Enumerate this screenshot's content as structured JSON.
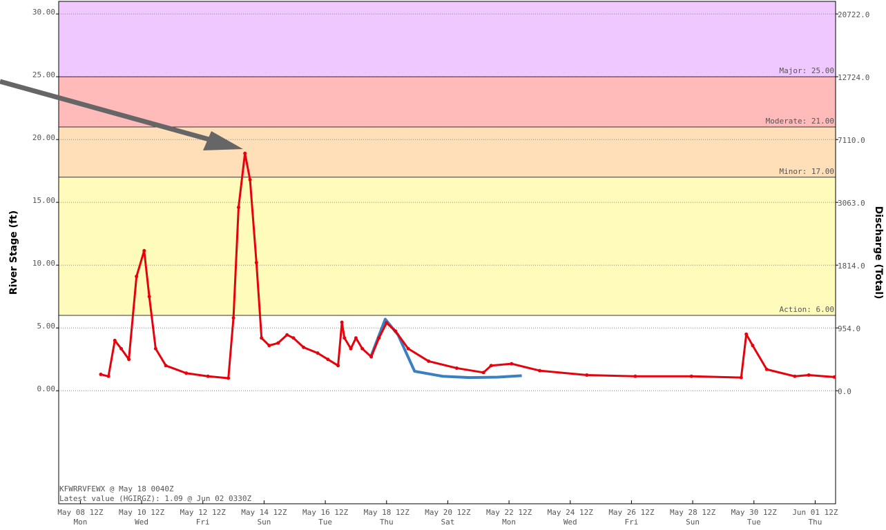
{
  "chart_data": {
    "type": "line",
    "ylabel": "River Stage (ft)",
    "y2label": "Discharge (Total)",
    "xlim": [
      "May 07 19Z",
      "Jun 02 04Z"
    ],
    "ylim": [
      -9,
      31
    ],
    "yticks": [
      {
        "value": 0,
        "label": "0.00"
      },
      {
        "value": 5,
        "label": "5.00"
      },
      {
        "value": 10,
        "label": "10.00"
      },
      {
        "value": 15,
        "label": "15.00"
      },
      {
        "value": 20,
        "label": "20.00"
      },
      {
        "value": 25,
        "label": "25.00"
      },
      {
        "value": 30,
        "label": "30.00"
      }
    ],
    "y2ticks": [
      {
        "value": 0,
        "label": "0.0",
        "stage": 0
      },
      {
        "value": 954,
        "label": "954.0",
        "stage": 5
      },
      {
        "value": 1814,
        "label": "1814.0",
        "stage": 10
      },
      {
        "value": 3063,
        "label": "3063.0",
        "stage": 15
      },
      {
        "value": 7110,
        "label": "7110.0",
        "stage": 20
      },
      {
        "value": 12724,
        "label": "12724.0",
        "stage": 25
      },
      {
        "value": 20722,
        "label": "20722.0",
        "stage": 30
      }
    ],
    "xticks": [
      "May 08 12Z",
      "May 10 12Z",
      "May 12 12Z",
      "May 14 12Z",
      "May 16 12Z",
      "May 18 12Z",
      "May 20 12Z",
      "May 22 12Z",
      "May 24 12Z",
      "May 26 12Z",
      "May 28 12Z",
      "May 30 12Z",
      "Jun 01 12Z"
    ],
    "xtick_weekdays": [
      "Mon",
      "Wed",
      "Fri",
      "Sun",
      "Tue",
      "Thu",
      "Sat",
      "Mon",
      "Wed",
      "Fri",
      "Sun",
      "Tue",
      "Thu"
    ],
    "flood_levels": [
      {
        "value": 6,
        "label": "Action: 6.00",
        "color": "#fffcbb"
      },
      {
        "value": 17,
        "label": "Minor: 17.00",
        "color": "#ffdfb8"
      },
      {
        "value": 21,
        "label": "Moderate: 21.00",
        "color": "#ffbaba"
      },
      {
        "value": 25,
        "label": "Major: 25.00",
        "color": "#efc8ff"
      }
    ],
    "grid": true,
    "series": [
      {
        "label": "Latest value (HGIRGZ): 1.09 @ Jun 02 0330Z",
        "color": "#e8000b",
        "markers": true,
        "x": [
          "May 09 04Z",
          "May 09 10Z",
          "May 09 15Z",
          "May 09 20Z",
          "May 10 02Z",
          "May 10 08Z",
          "May 10 14Z",
          "May 10 18Z",
          "May 10 23Z",
          "May 11 07Z",
          "May 11 23Z",
          "May 12 16Z",
          "May 13 08Z",
          "May 13 12Z",
          "May 13 16Z",
          "May 13 21Z",
          "May 14 01Z",
          "May 14 06Z",
          "May 14 10Z",
          "May 14 16Z",
          "May 14 23Z",
          "May 15 06Z",
          "May 15 11Z",
          "May 15 19Z",
          "May 16 06Z",
          "May 16 14Z",
          "May 16 22Z",
          "May 17 01Z",
          "May 17 03Z",
          "May 17 08Z",
          "May 17 12Z",
          "May 17 17Z",
          "May 18 00Z",
          "May 18 06Z",
          "May 18 12Z",
          "May 18 19Z",
          "May 19 05Z",
          "May 19 21Z",
          "May 20 19Z",
          "May 21 16Z",
          "May 21 22Z",
          "May 22 14Z",
          "May 23 12Z",
          "May 25 01Z",
          "May 26 15Z",
          "May 28 11Z",
          "May 30 02Z",
          "May 30 06Z",
          "May 30 11Z",
          "May 30 22Z",
          "May 31 20Z",
          "Jun 01 07Z",
          "Jun 02 03Z"
        ],
        "values": [
          1.3,
          1.15,
          4.0,
          3.35,
          2.5,
          9.1,
          11.15,
          7.5,
          3.35,
          2.0,
          1.4,
          1.15,
          1.0,
          5.8,
          14.6,
          18.9,
          16.8,
          10.2,
          4.2,
          3.6,
          3.8,
          4.45,
          4.2,
          3.45,
          3.0,
          2.5,
          2.0,
          5.45,
          4.2,
          3.35,
          4.2,
          3.35,
          2.7,
          4.2,
          5.4,
          4.75,
          3.35,
          2.35,
          1.8,
          1.45,
          2.0,
          2.15,
          1.6,
          1.25,
          1.15,
          1.15,
          1.05,
          4.5,
          3.6,
          1.7,
          1.15,
          1.25,
          1.09
        ]
      },
      {
        "label": "KFWRRVFEWX @ May 18 0040Z",
        "color": "#3a7fbf",
        "markers": false,
        "x": [
          "May 18 00Z",
          "May 18 11Z",
          "May 18 21Z",
          "May 19 10Z",
          "May 20 08Z",
          "May 21 05Z",
          "May 22 03Z",
          "May 22 22Z"
        ],
        "values": [
          2.8,
          5.7,
          4.45,
          1.55,
          1.15,
          1.05,
          1.08,
          1.2
        ]
      }
    ]
  }
}
